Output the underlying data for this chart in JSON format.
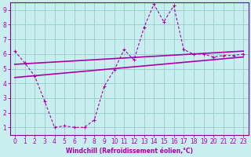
{
  "xlabel": "Windchill (Refroidissement éolien,°C)",
  "ylabel": "",
  "bg_color": "#c8eef0",
  "line_color": "#aa00aa",
  "grid_color": "#99cccc",
  "spine_color": "#880088",
  "xlim": [
    -0.5,
    23.5
  ],
  "ylim": [
    0.5,
    9.5
  ],
  "xticks": [
    0,
    1,
    2,
    3,
    4,
    5,
    6,
    7,
    8,
    9,
    10,
    11,
    12,
    13,
    14,
    15,
    16,
    17,
    18,
    19,
    20,
    21,
    22,
    23
  ],
  "yticks": [
    1,
    2,
    3,
    4,
    5,
    6,
    7,
    8,
    9
  ],
  "line1_x": [
    0,
    1,
    2,
    3,
    4,
    5,
    6,
    7,
    8,
    9,
    10,
    11,
    12,
    13,
    14,
    15,
    16,
    17,
    18,
    19,
    20,
    21,
    22,
    23
  ],
  "line1_y": [
    6.2,
    5.4,
    4.5,
    2.8,
    1.0,
    1.1,
    1.0,
    1.0,
    1.5,
    3.8,
    4.9,
    6.3,
    5.6,
    7.8,
    9.4,
    8.2,
    9.3,
    6.3,
    6.0,
    6.0,
    5.8,
    5.9,
    5.9,
    6.0
  ],
  "line2_x": [
    0,
    23
  ],
  "line2_y": [
    5.3,
    6.2
  ],
  "line3_x": [
    0,
    23
  ],
  "line3_y": [
    4.4,
    5.8
  ],
  "tick_fontsize": 5.5,
  "xlabel_fontsize": 5.5
}
